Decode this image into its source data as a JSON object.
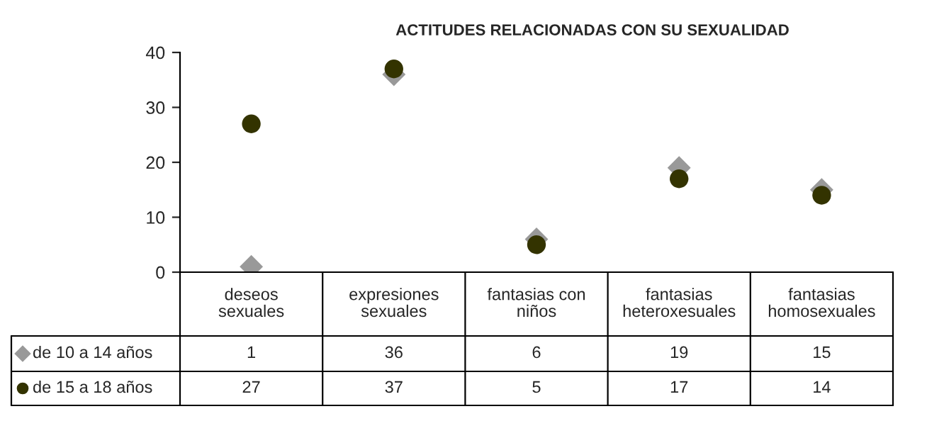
{
  "chart_data": {
    "type": "scatter",
    "title": "ACTITUDES RELACIONADAS CON SU SEXUALIDAD",
    "categories": [
      "deseos\nsexuales",
      "expresiones\nsexuales",
      "fantasias con\nniños",
      "fantasias\nheteroxesuales",
      "fantasias\nhomosexuales"
    ],
    "series": [
      {
        "name": "de 10 a 14 años",
        "color": "#999999",
        "marker": "diamond",
        "values": [
          1,
          36,
          6,
          19,
          15
        ]
      },
      {
        "name": "de 15 a 18 años",
        "color": "#333300",
        "marker": "circle",
        "values": [
          27,
          37,
          5,
          17,
          14
        ]
      }
    ],
    "ylim": [
      0,
      40
    ],
    "yticks": [
      0,
      10,
      20,
      30,
      40
    ],
    "grid": false,
    "legend": "bottom left",
    "data_labels": true
  }
}
